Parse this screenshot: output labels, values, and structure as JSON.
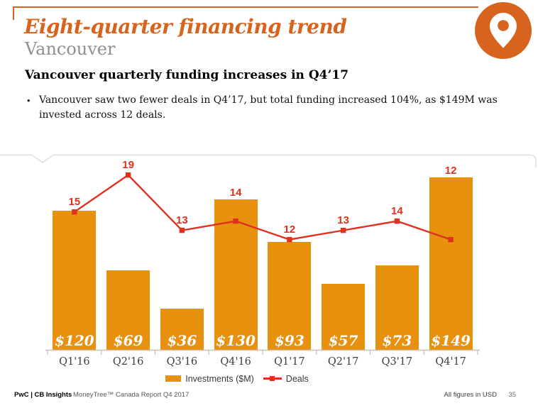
{
  "header": {
    "title": "Eight-quarter financing trend",
    "subtitle": "Vancouver",
    "icon": "location-pin",
    "heading": "Vancouver quarterly funding increases in Q4’17",
    "bullet": "Vancouver saw two fewer deals in Q4’17, but total funding increased 104%, as $149M was invested across 12 deals."
  },
  "chart_data": {
    "type": "combo",
    "categories": [
      "Q1'16",
      "Q2'16",
      "Q3'16",
      "Q4'16",
      "Q1'17",
      "Q2'17",
      "Q3'17",
      "Q4'17"
    ],
    "series": [
      {
        "name": "Investments ($M)",
        "chart_type": "bar",
        "values": [
          120,
          69,
          36,
          130,
          93,
          57,
          73,
          149
        ],
        "value_labels": [
          "$120",
          "$69",
          "$36",
          "$130",
          "$93",
          "$57",
          "$73",
          "$149"
        ],
        "label_position": "inside-bottom",
        "color": "#E8910E"
      },
      {
        "name": "Deals",
        "chart_type": "line",
        "values": [
          15,
          19,
          13,
          14,
          12,
          13,
          14,
          12
        ],
        "label_position": "above-point",
        "marker": "square",
        "color": "#E0301E"
      }
    ],
    "title": "",
    "xlabel": "",
    "ylabel": "",
    "y_axis_visible": false,
    "x_tick_marks": true,
    "grid": false,
    "legend_position": "bottom",
    "investments_axis_max": 162,
    "deals_axis_max": 20.4
  },
  "footer": {
    "brand": "PwC | CB Insights",
    "report": "MoneyTree™ Canada Report Q4 2017",
    "note": "All figures in USD",
    "page": "35"
  },
  "colors": {
    "accent_orange": "#D7641E",
    "bar_orange": "#E8910E",
    "line_red": "#E0301E",
    "subtitle_gray": "#8F8F8F",
    "axis_tan": "#C9C0B1",
    "panel_border_gray": "#DEDEDA"
  }
}
